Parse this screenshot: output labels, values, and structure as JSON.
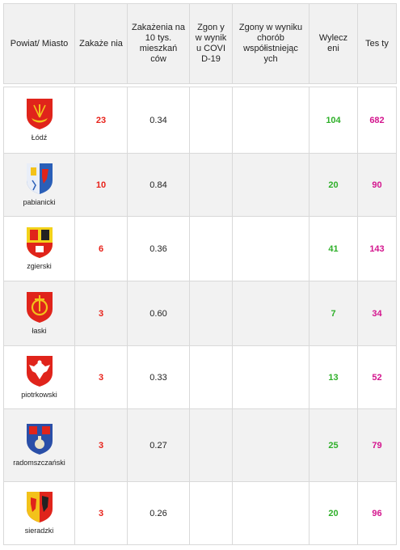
{
  "headers": {
    "place": "Powiat/ Miasto",
    "cases": "Zakaże nia",
    "per10k": "Zakażenia na 10 tys. mieszkań ców",
    "deaths_covid": "Zgon y w wynik u COVI D-19",
    "deaths_comorb": "Zgony w wyniku chorób współistniejąc ych",
    "recovered": "Wylecz eni",
    "tests": "Tes ty"
  },
  "rows": [
    {
      "name": "Łódź",
      "cases": "23",
      "per10k": "0.34",
      "deaths_covid": "",
      "deaths_comorb": "",
      "recovered": "104",
      "tests": "682",
      "crest": "lodz-crest-icon"
    },
    {
      "name": "pabianicki",
      "cases": "10",
      "per10k": "0.84",
      "deaths_covid": "",
      "deaths_comorb": "",
      "recovered": "20",
      "tests": "90",
      "crest": "pabianicki-crest-icon"
    },
    {
      "name": "zgierski",
      "cases": "6",
      "per10k": "0.36",
      "deaths_covid": "",
      "deaths_comorb": "",
      "recovered": "41",
      "tests": "143",
      "crest": "zgierski-crest-icon"
    },
    {
      "name": "łaski",
      "cases": "3",
      "per10k": "0.60",
      "deaths_covid": "",
      "deaths_comorb": "",
      "recovered": "7",
      "tests": "34",
      "crest": "laski-crest-icon"
    },
    {
      "name": "piotrkowski",
      "cases": "3",
      "per10k": "0.33",
      "deaths_covid": "",
      "deaths_comorb": "",
      "recovered": "13",
      "tests": "52",
      "crest": "piotrkowski-crest-icon"
    },
    {
      "name": "radomszczański",
      "cases": "3",
      "per10k": "0.27",
      "deaths_covid": "",
      "deaths_comorb": "",
      "recovered": "25",
      "tests": "79",
      "crest": "radomszczanski-crest-icon"
    },
    {
      "name": "sieradzki",
      "cases": "3",
      "per10k": "0.26",
      "deaths_covid": "",
      "deaths_comorb": "",
      "recovered": "20",
      "tests": "96",
      "crest": "sieradzki-crest-icon"
    }
  ],
  "colors": {
    "cases": "#e8221a",
    "recovered": "#2fb02a",
    "tests": "#d4168e"
  }
}
